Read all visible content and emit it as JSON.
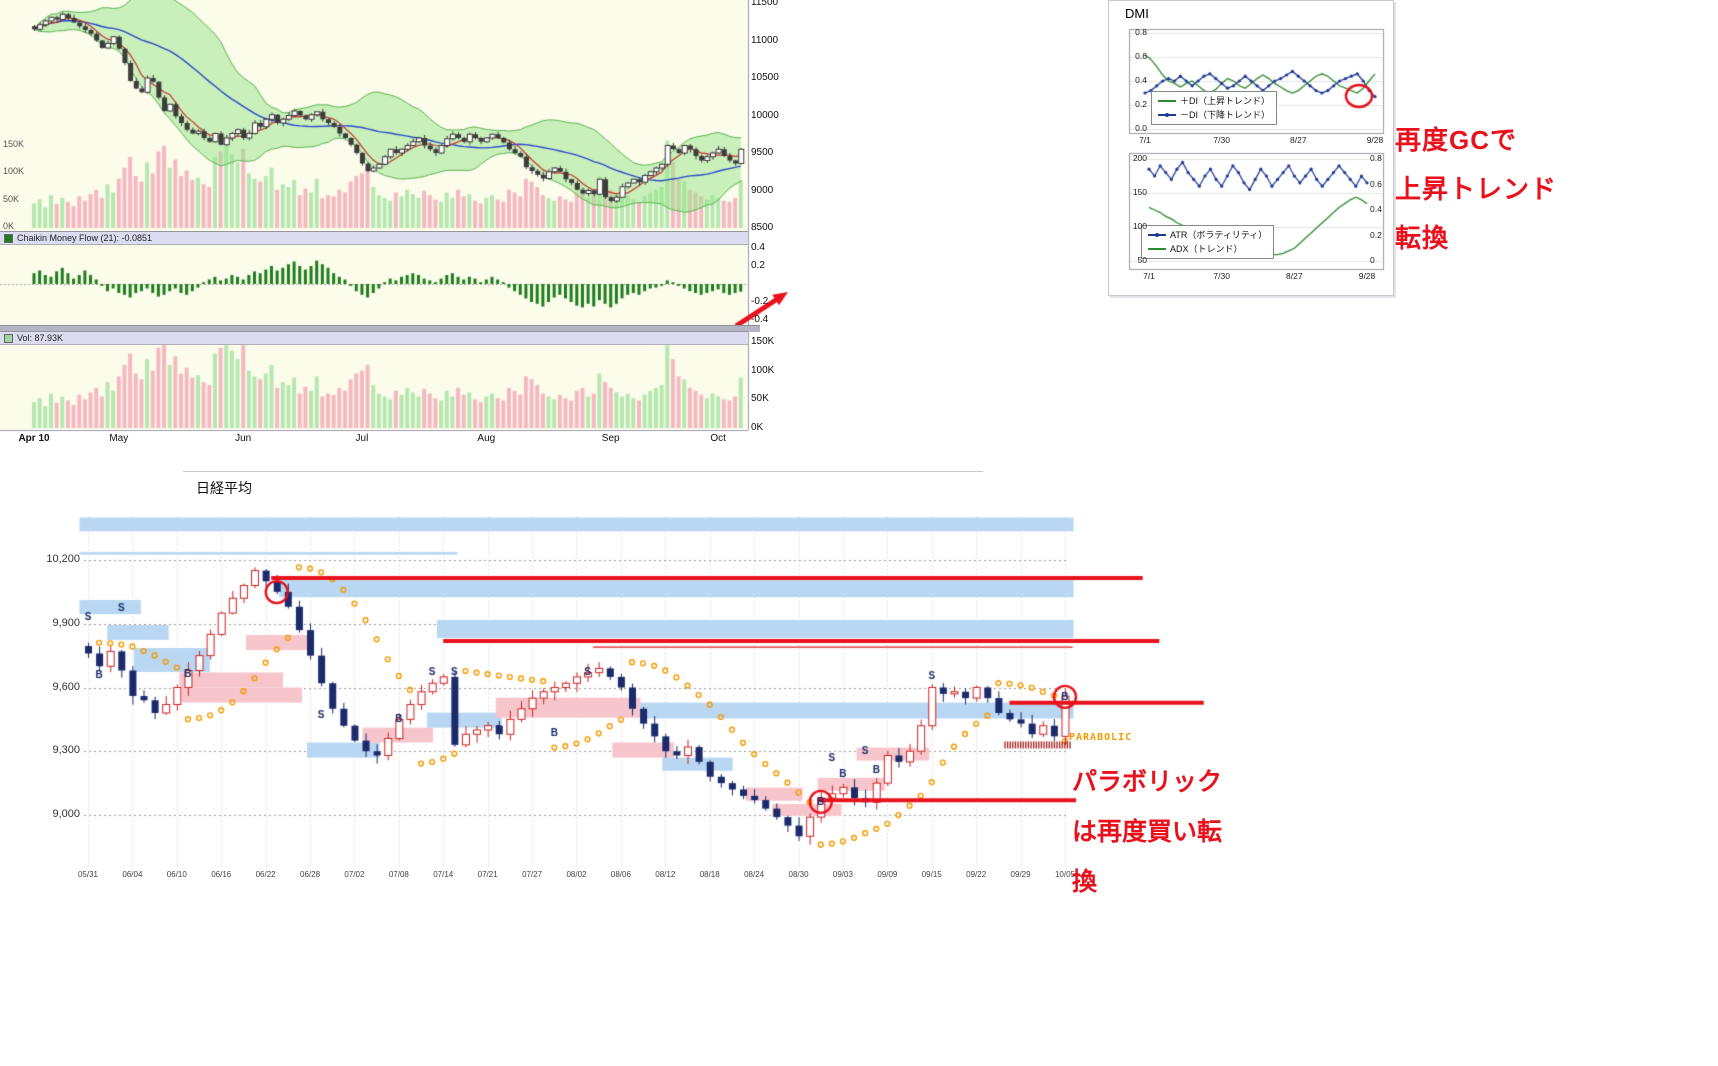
{
  "colors": {
    "accent_red": "#e8111c",
    "candle_up_border": "#cc2222",
    "candle_down_fill": "#1b2a6b",
    "zone_blue": "#b9d7f3",
    "zone_pink": "#f7c5cc",
    "parabolic_orange": "#f59a00",
    "cmf_green": "#1e7d1e",
    "vol_up": "#b5e8b0",
    "vol_down": "#f5b8c2",
    "ma_fast": "#cc3333",
    "ma_slow": "#2b48cc",
    "band_green": "#5cb457"
  },
  "annotations": {
    "dmi_note_lines": [
      "再度GCで",
      "上昇トレンド",
      "転換"
    ],
    "nikkei_note_lines": [
      "パラボリック",
      "は再度買い転",
      "換"
    ]
  },
  "chart_data": [
    {
      "id": "main",
      "type": "candlestick",
      "title": "",
      "x_ticks": [
        {
          "label": "Apr 10",
          "i": 0
        },
        {
          "label": "May",
          "i": 15
        },
        {
          "label": "Jun",
          "i": 37
        },
        {
          "label": "Jul",
          "i": 58
        },
        {
          "label": "Aug",
          "i": 80
        },
        {
          "label": "Sep",
          "i": 102
        },
        {
          "label": "Oct",
          "i": 121
        }
      ],
      "ylim": [
        8500,
        11500
      ],
      "y_ticks": [
        11500,
        11000,
        10500,
        10000,
        9500,
        9000,
        8500
      ],
      "volume_axis_labels": [
        "150K",
        "100K",
        "50K",
        "0K"
      ],
      "indicators": [
        "Bollinger(20,2) green band",
        "fast MA red",
        "slow MA blue",
        "volume overlay"
      ],
      "closes": [
        11150,
        11210,
        11260,
        11310,
        11280,
        11350,
        11300,
        11240,
        11190,
        11140,
        11090,
        11000,
        10900,
        10960,
        11050,
        10890,
        10700,
        10460,
        10360,
        10310,
        10500,
        10450,
        10240,
        10060,
        10150,
        9990,
        9900,
        9810,
        9760,
        9790,
        9700,
        9650,
        9760,
        9610,
        9700,
        9760,
        9810,
        9700,
        9760,
        9900,
        9850,
        9950,
        10010,
        9900,
        9950,
        10000,
        10060,
        10000,
        9950,
        10010,
        10050,
        9950,
        9900,
        9850,
        9760,
        9700,
        9610,
        9500,
        9360,
        9260,
        9300,
        9350,
        9450,
        9550,
        9500,
        9550,
        9600,
        9650,
        9700,
        9600,
        9550,
        9500,
        9600,
        9690,
        9750,
        9700,
        9650,
        9750,
        9700,
        9650,
        9700,
        9750,
        9700,
        9640,
        9550,
        9500,
        9450,
        9310,
        9260,
        9210,
        9160,
        9250,
        9300,
        9250,
        9150,
        9100,
        9010,
        8960,
        9000,
        8950,
        9150,
        8910,
        8860,
        8910,
        9050,
        9100,
        9150,
        9110,
        9200,
        9250,
        9300,
        9350,
        9600,
        9550,
        9500,
        9600,
        9550,
        9460,
        9400,
        9450,
        9500,
        9550,
        9460,
        9400,
        9360,
        9550
      ],
      "volumes_k": [
        45,
        52,
        38,
        60,
        44,
        55,
        48,
        40,
        58,
        50,
        62,
        70,
        55,
        80,
        65,
        90,
        110,
        130,
        95,
        85,
        120,
        100,
        140,
        150,
        110,
        125,
        95,
        105,
        88,
        92,
        80,
        75,
        130,
        140,
        150,
        135,
        120,
        145,
        100,
        90,
        85,
        95,
        110,
        70,
        80,
        75,
        88,
        60,
        72,
        65,
        90,
        55,
        60,
        58,
        70,
        65,
        85,
        95,
        100,
        110,
        75,
        60,
        55,
        50,
        65,
        58,
        70,
        62,
        55,
        68,
        60,
        52,
        48,
        65,
        55,
        70,
        58,
        62,
        50,
        45,
        55,
        60,
        52,
        48,
        70,
        65,
        58,
        90,
        85,
        75,
        60,
        55,
        50,
        58,
        52,
        48,
        65,
        70,
        55,
        60,
        95,
        80,
        70,
        62,
        55,
        60,
        52,
        48,
        58,
        65,
        70,
        75,
        160,
        120,
        90,
        85,
        70,
        65,
        58,
        52,
        60,
        55,
        50,
        48,
        55,
        88
      ]
    },
    {
      "id": "cmf",
      "type": "bar",
      "label": "Chaikin Money Flow (21): -0.0851",
      "ylim": [
        -0.45,
        0.45
      ],
      "y_tick_labels": [
        "0.4",
        "0.2",
        "-0.2",
        "-0.4"
      ],
      "values": [
        0.12,
        0.15,
        0.1,
        0.08,
        0.14,
        0.18,
        0.12,
        0.06,
        0.1,
        0.15,
        0.1,
        0.05,
        -0.02,
        -0.08,
        -0.05,
        -0.1,
        -0.12,
        -0.15,
        -0.1,
        -0.08,
        -0.05,
        -0.1,
        -0.14,
        -0.12,
        -0.08,
        -0.05,
        -0.1,
        -0.12,
        -0.08,
        -0.04,
        0.02,
        0.05,
        0.08,
        0.04,
        0.06,
        0.1,
        0.08,
        0.05,
        0.1,
        0.14,
        0.12,
        0.16,
        0.2,
        0.15,
        0.18,
        0.22,
        0.25,
        0.2,
        0.16,
        0.2,
        0.26,
        0.22,
        0.18,
        0.12,
        0.08,
        0.05,
        -0.02,
        -0.08,
        -0.12,
        -0.15,
        -0.1,
        -0.05,
        0.02,
        0.06,
        0.04,
        0.08,
        0.1,
        0.12,
        0.1,
        0.06,
        0.04,
        0.02,
        0.06,
        0.1,
        0.12,
        0.08,
        0.05,
        0.08,
        0.06,
        0.02,
        0.05,
        0.08,
        0.05,
        0.02,
        -0.04,
        -0.08,
        -0.12,
        -0.16,
        -0.2,
        -0.22,
        -0.25,
        -0.2,
        -0.15,
        -0.12,
        -0.16,
        -0.2,
        -0.24,
        -0.26,
        -0.22,
        -0.25,
        -0.18,
        -0.22,
        -0.26,
        -0.22,
        -0.16,
        -0.12,
        -0.1,
        -0.12,
        -0.08,
        -0.05,
        -0.04,
        -0.02,
        0.04,
        0.02,
        -0.02,
        -0.05,
        -0.08,
        -0.1,
        -0.12,
        -0.1,
        -0.08,
        -0.06,
        -0.1,
        -0.12,
        -0.1,
        -0.0851
      ]
    },
    {
      "id": "volume_panel",
      "type": "bar",
      "label": "Vol: 87.93K",
      "y_tick_labels": [
        "150K",
        "100K",
        "50K",
        "0K"
      ],
      "values_ref": "main.volumes_k"
    },
    {
      "id": "dmi_di",
      "type": "line",
      "title": "DMI",
      "x_ticks": [
        "7/1",
        "7/30",
        "8/27",
        "9/28"
      ],
      "ylim": [
        0,
        0.8
      ],
      "y_ticks": [
        "0.8",
        "0.6",
        "0.4",
        "0.2",
        "0.0"
      ],
      "series": [
        {
          "name": "＋DI（上昇トレンド）",
          "color": "#2e8b2e",
          "markers": false,
          "values": [
            0.62,
            0.58,
            0.52,
            0.45,
            0.4,
            0.38,
            0.35,
            0.38,
            0.4,
            0.36,
            0.32,
            0.3,
            0.33,
            0.38,
            0.42,
            0.4,
            0.36,
            0.34,
            0.38,
            0.42,
            0.45,
            0.42,
            0.38,
            0.35,
            0.32,
            0.3,
            0.32,
            0.36,
            0.4,
            0.44,
            0.46,
            0.44,
            0.4,
            0.36,
            0.34,
            0.32,
            0.3,
            0.34,
            0.4,
            0.46
          ]
        },
        {
          "name": "－DI（下降トレンド）",
          "color": "#1f3a93",
          "markers": true,
          "values": [
            0.3,
            0.32,
            0.36,
            0.4,
            0.42,
            0.4,
            0.44,
            0.4,
            0.36,
            0.4,
            0.44,
            0.46,
            0.42,
            0.38,
            0.34,
            0.36,
            0.4,
            0.44,
            0.4,
            0.36,
            0.32,
            0.36,
            0.4,
            0.42,
            0.45,
            0.48,
            0.44,
            0.4,
            0.36,
            0.32,
            0.3,
            0.32,
            0.36,
            0.4,
            0.42,
            0.44,
            0.46,
            0.4,
            0.32,
            0.27
          ]
        }
      ]
    },
    {
      "id": "atr_adx",
      "type": "line",
      "x_ticks": [
        "7/1",
        "7/30",
        "8/27",
        "9/28"
      ],
      "ylim_left": [
        50,
        200
      ],
      "y_ticks_left": [
        "200",
        "150",
        "100",
        "50"
      ],
      "ylim_right": [
        0,
        0.8
      ],
      "y_ticks_right": [
        "0.8",
        "0.6",
        "0.4",
        "0.2",
        "0"
      ],
      "series": [
        {
          "name": "ATR（ボラティリティ）",
          "color": "#1f3a93",
          "axis": "left",
          "markers": true,
          "values": [
            185,
            175,
            190,
            180,
            170,
            185,
            195,
            180,
            170,
            160,
            175,
            185,
            170,
            160,
            175,
            190,
            180,
            165,
            155,
            170,
            185,
            175,
            160,
            170,
            180,
            190,
            175,
            165,
            175,
            185,
            170,
            160,
            170,
            180,
            190,
            180,
            170,
            160,
            175,
            165
          ]
        },
        {
          "name": "ADX（トレンド）",
          "color": "#2e8b2e",
          "axis": "right",
          "markers": false,
          "values": [
            0.42,
            0.4,
            0.38,
            0.35,
            0.33,
            0.3,
            0.28,
            0.26,
            0.25,
            0.24,
            0.22,
            0.2,
            0.19,
            0.18,
            0.17,
            0.16,
            0.15,
            0.14,
            0.12,
            0.1,
            0.08,
            0.06,
            0.05,
            0.05,
            0.06,
            0.08,
            0.1,
            0.14,
            0.18,
            0.22,
            0.26,
            0.3,
            0.34,
            0.38,
            0.42,
            0.45,
            0.48,
            0.5,
            0.48,
            0.45
          ]
        }
      ]
    },
    {
      "id": "nikkei",
      "type": "candlestick",
      "title": "日経平均",
      "parabolic_label": "PARABOLIC",
      "y_ticks": [
        {
          "label": "10,200",
          "v": 10200
        },
        {
          "label": "9,900",
          "v": 9900
        },
        {
          "label": "9,600",
          "v": 9600
        },
        {
          "label": "9,300",
          "v": 9300
        },
        {
          "label": "9,000",
          "v": 9000
        }
      ],
      "x_ticks": [
        "05/31",
        "06/04",
        "06/10",
        "06/16",
        "06/22",
        "06/28",
        "07/02",
        "07/08",
        "07/14",
        "07/21",
        "07/27",
        "08/02",
        "08/06",
        "08/12",
        "08/18",
        "08/24",
        "08/30",
        "09/03",
        "09/09",
        "09/15",
        "09/22",
        "09/29",
        "10/05"
      ],
      "x_tick_step": 4,
      "closes": [
        9760,
        9700,
        9770,
        9680,
        9560,
        9540,
        9480,
        9520,
        9600,
        9680,
        9750,
        9850,
        9950,
        10020,
        10080,
        10150,
        10100,
        10050,
        9980,
        9870,
        9750,
        9620,
        9500,
        9420,
        9350,
        9300,
        9280,
        9360,
        9450,
        9520,
        9580,
        9620,
        9650,
        9330,
        9380,
        9400,
        9420,
        9380,
        9450,
        9500,
        9550,
        9580,
        9600,
        9620,
        9650,
        9670,
        9690,
        9650,
        9600,
        9500,
        9430,
        9370,
        9300,
        9280,
        9320,
        9250,
        9180,
        9150,
        9120,
        9090,
        9070,
        9030,
        8990,
        8950,
        8900,
        8990,
        9080,
        9100,
        9130,
        9080,
        9060,
        9150,
        9280,
        9250,
        9300,
        9420,
        9600,
        9570,
        9580,
        9550,
        9600,
        9550,
        9480,
        9450,
        9430,
        9380,
        9420,
        9370,
        9560
      ],
      "zones": [
        {
          "x": [
            -0.5,
            88.5
          ],
          "p": [
            10335,
            10400
          ],
          "c": "blue"
        },
        {
          "x": [
            -0.5,
            33
          ],
          "p": [
            10225,
            10238
          ],
          "c": "blue"
        },
        {
          "x": [
            -0.5,
            4.5
          ],
          "p": [
            9945,
            10012
          ],
          "c": "blue"
        },
        {
          "x": [
            2,
            7
          ],
          "p": [
            9824,
            9894
          ],
          "c": "blue"
        },
        {
          "x": [
            4.4,
            10.7
          ],
          "p": [
            9673,
            9786
          ],
          "c": "blue"
        },
        {
          "x": [
            8.5,
            17.3
          ],
          "p": [
            9600,
            9671
          ],
          "c": "pink"
        },
        {
          "x": [
            8.7,
            19
          ],
          "p": [
            9529,
            9600
          ],
          "c": "pink"
        },
        {
          "x": [
            14.5,
            20
          ],
          "p": [
            9776,
            9847
          ],
          "c": "pink"
        },
        {
          "x": [
            17.5,
            88.5
          ],
          "p": [
            10025,
            10105
          ],
          "c": "blue"
        },
        {
          "x": [
            31.7,
            88.5
          ],
          "p": [
            9833,
            9918
          ],
          "c": "blue"
        },
        {
          "x": [
            20,
            26
          ],
          "p": [
            9270,
            9341
          ],
          "c": "blue"
        },
        {
          "x": [
            25,
            30.8
          ],
          "p": [
            9341,
            9411
          ],
          "c": "pink"
        },
        {
          "x": [
            30.8,
            37
          ],
          "p": [
            9411,
            9482
          ],
          "c": "blue"
        },
        {
          "x": [
            37,
            49.5
          ],
          "p": [
            9458,
            9552
          ],
          "c": "pink"
        },
        {
          "x": [
            47.5,
            52.5
          ],
          "p": [
            9270,
            9341
          ],
          "c": "pink"
        },
        {
          "x": [
            50,
            88.5
          ],
          "p": [
            9454,
            9529
          ],
          "c": "blue"
        },
        {
          "x": [
            52,
            57.8
          ],
          "p": [
            9208,
            9270
          ],
          "c": "blue"
        },
        {
          "x": [
            59.5,
            64.1
          ],
          "p": [
            9067,
            9129
          ],
          "c": "pink"
        },
        {
          "x": [
            61.9,
            67.6
          ],
          "p": [
            8996,
            9052
          ],
          "c": "pink"
        },
        {
          "x": [
            66,
            71.5
          ],
          "p": [
            9114,
            9175
          ],
          "c": "pink"
        },
        {
          "x": [
            69.5,
            75.5
          ],
          "p": [
            9256,
            9317
          ],
          "c": "pink"
        }
      ],
      "trendlines": [
        {
          "x": [
            16.5,
            95
          ],
          "p": 10115,
          "w": 4
        },
        {
          "x": [
            32,
            96.5
          ],
          "p": 9819,
          "w": 4
        },
        {
          "x": [
            83,
            100.5
          ],
          "p": 9528,
          "w": 4
        },
        {
          "x": [
            65.8,
            89
          ],
          "p": 9070,
          "w": 4
        },
        {
          "x": [
            45.5,
            88.7
          ],
          "p": 9790,
          "w": 1.2
        }
      ],
      "circles": [
        {
          "i": 17,
          "p": 10049
        },
        {
          "i": 66,
          "p": 9062
        },
        {
          "i": 88,
          "p": 9556
        }
      ],
      "hatch": {
        "x": [
          82.6,
          88.6
        ],
        "p": 9330
      },
      "markers": [
        {
          "i": 0,
          "p": 9930,
          "t": "S"
        },
        {
          "i": 1,
          "p": 9660,
          "t": "B"
        },
        {
          "i": 3,
          "p": 9976,
          "t": "S"
        },
        {
          "i": 9,
          "p": 9665,
          "t": "B"
        },
        {
          "i": 21,
          "p": 9470,
          "t": "S"
        },
        {
          "i": 28,
          "p": 9450,
          "t": "B"
        },
        {
          "i": 31,
          "p": 9673,
          "t": "S"
        },
        {
          "i": 33,
          "p": 9673,
          "t": "S"
        },
        {
          "i": 37,
          "p": 9400,
          "t": "B"
        },
        {
          "i": 42,
          "p": 9386,
          "t": "B"
        },
        {
          "i": 45,
          "p": 9673,
          "t": "S"
        },
        {
          "i": 67,
          "p": 9270,
          "t": "S"
        },
        {
          "i": 68,
          "p": 9195,
          "t": "B"
        },
        {
          "i": 70,
          "p": 9300,
          "t": "S"
        },
        {
          "i": 71,
          "p": 9210,
          "t": "B"
        },
        {
          "i": 76,
          "p": 9655,
          "t": "S"
        },
        {
          "i": 66,
          "p": 9062,
          "t": "B"
        },
        {
          "i": 88,
          "p": 9556,
          "t": "B"
        }
      ]
    }
  ]
}
